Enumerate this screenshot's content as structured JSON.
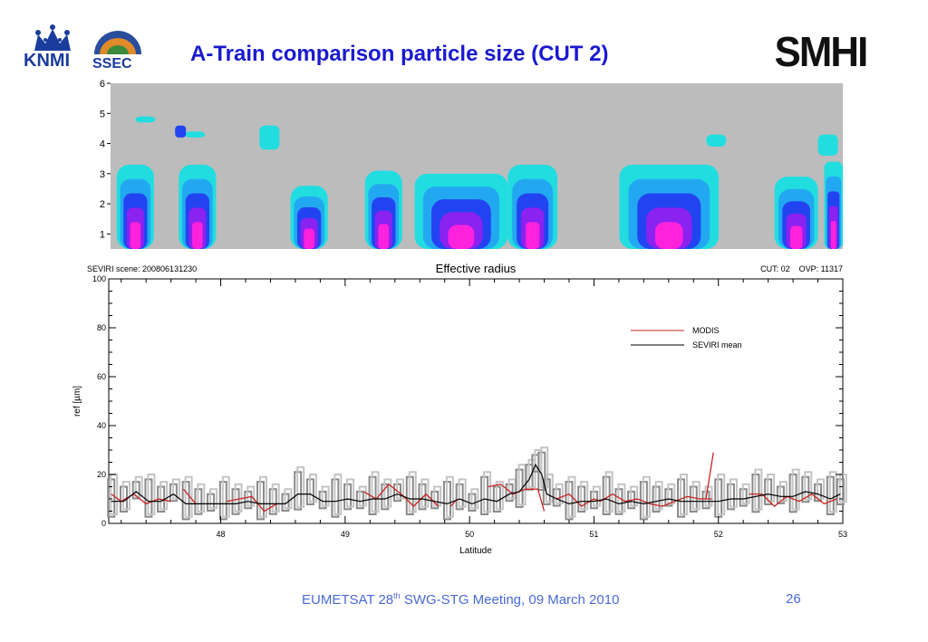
{
  "slide": {
    "title": "A-Train comparison particle size (CUT 2)",
    "footer_prefix": "EUMETSAT 28",
    "footer_sup": "th",
    "footer_suffix": " SWG-STG Meeting, 09 March 2010",
    "page_number": "26"
  },
  "logos": {
    "knmi": "KNMI",
    "ssec": "SSEC",
    "smhi": "SMHI"
  },
  "chart_data": [
    {
      "type": "heatmap",
      "y_ticks": [
        "1",
        "2",
        "3",
        "4",
        "5",
        "6"
      ],
      "ylim": [
        0.5,
        6
      ],
      "xlim": [
        47.1,
        53
      ],
      "colors": {
        "background": "#bcbcbc",
        "level1": "#22dde0",
        "level2": "#22a8f0",
        "level3": "#2244f0",
        "level4": "#8a22f0",
        "level5": "#ff22dd"
      },
      "columns": [
        {
          "x": [
            47.15,
            47.45
          ],
          "top": 3.3
        },
        {
          "x": [
            47.65,
            47.95
          ],
          "top": 3.3
        },
        {
          "x": [
            48.55,
            48.85
          ],
          "top": 2.6
        },
        {
          "x": [
            49.15,
            49.45
          ],
          "top": 3.1
        },
        {
          "x": [
            49.55,
            50.3
          ],
          "top": 3.0
        },
        {
          "x": [
            50.3,
            50.7
          ],
          "top": 3.3
        },
        {
          "x": [
            51.2,
            52.0
          ],
          "top": 3.3
        },
        {
          "x": [
            52.45,
            52.8
          ],
          "top": 2.9
        },
        {
          "x": [
            52.85,
            53.0
          ],
          "top": 3.4
        }
      ]
    },
    {
      "type": "line",
      "title": "Effective radius",
      "header_left": "SEVIRI scene: 200806131230",
      "header_right": "CUT: 02    OVP: 11317",
      "xlabel": "Latitude",
      "ylabel": "ref [µm]",
      "xlim": [
        47.1,
        53
      ],
      "ylim": [
        0,
        100
      ],
      "x_ticks": [
        48,
        49,
        50,
        51,
        52,
        53
      ],
      "y_ticks": [
        0,
        20,
        40,
        60,
        80,
        100
      ],
      "legend_position": "top-right",
      "series": [
        {
          "name": "MODIS",
          "color": "#cc2222",
          "segments": [
            [
              [
                47.12,
                12
              ],
              [
                47.2,
                9
              ],
              [
                47.3,
                12
              ],
              [
                47.4,
                8
              ],
              [
                47.5,
                10
              ],
              [
                47.6,
                9
              ]
            ],
            [
              [
                47.7,
                14
              ],
              [
                47.8,
                8
              ]
            ],
            [
              [
                48.05,
                9
              ],
              [
                48.15,
                10
              ],
              [
                48.25,
                11
              ],
              [
                48.35,
                5
              ],
              [
                48.45,
                8
              ]
            ],
            [
              [
                49.15,
                13
              ],
              [
                49.25,
                10
              ],
              [
                49.35,
                16
              ],
              [
                49.45,
                12
              ],
              [
                49.55,
                7
              ],
              [
                49.65,
                12
              ],
              [
                49.75,
                7
              ]
            ],
            [
              [
                49.85,
                7
              ],
              [
                49.9,
                10
              ]
            ],
            [
              [
                50.15,
                15
              ],
              [
                50.25,
                16
              ],
              [
                50.35,
                12
              ],
              [
                50.45,
                14
              ],
              [
                50.55,
                14
              ],
              [
                50.6,
                5
              ]
            ],
            [
              [
                50.7,
                10
              ],
              [
                50.8,
                12
              ],
              [
                50.9,
                7
              ],
              [
                51.0,
                10
              ],
              [
                51.05,
                9
              ],
              [
                51.15,
                12
              ],
              [
                51.25,
                9
              ],
              [
                51.35,
                10
              ],
              [
                51.45,
                8
              ],
              [
                51.55,
                7
              ],
              [
                51.65,
                9
              ],
              [
                51.75,
                11
              ],
              [
                51.85,
                10
              ],
              [
                51.95,
                10
              ]
            ],
            [
              [
                51.9,
                10
              ],
              [
                51.96,
                29
              ]
            ],
            [
              [
                52.25,
                12
              ],
              [
                52.35,
                12
              ],
              [
                52.45,
                7
              ],
              [
                52.55,
                11
              ],
              [
                52.65,
                9
              ],
              [
                52.75,
                12
              ],
              [
                52.85,
                8
              ],
              [
                52.95,
                10
              ]
            ]
          ]
        },
        {
          "name": "SEVIRI mean",
          "color": "#000000",
          "points": [
            [
              47.12,
              9
            ],
            [
              47.22,
              9
            ],
            [
              47.32,
              13
            ],
            [
              47.42,
              9
            ],
            [
              47.52,
              9
            ],
            [
              47.62,
              12
            ],
            [
              47.72,
              8
            ],
            [
              47.82,
              8
            ],
            [
              47.92,
              8
            ],
            [
              48.02,
              8
            ],
            [
              48.12,
              8
            ],
            [
              48.22,
              9
            ],
            [
              48.32,
              8
            ],
            [
              48.42,
              8
            ],
            [
              48.52,
              8
            ],
            [
              48.62,
              12
            ],
            [
              48.72,
              12
            ],
            [
              48.82,
              9
            ],
            [
              48.92,
              9
            ],
            [
              49.02,
              10
            ],
            [
              49.12,
              9
            ],
            [
              49.22,
              10
            ],
            [
              49.32,
              10
            ],
            [
              49.42,
              12
            ],
            [
              49.52,
              10
            ],
            [
              49.62,
              10
            ],
            [
              49.72,
              9
            ],
            [
              49.82,
              8
            ],
            [
              49.92,
              10
            ],
            [
              50.02,
              8
            ],
            [
              50.12,
              10
            ],
            [
              50.22,
              9
            ],
            [
              50.32,
              12
            ],
            [
              50.4,
              13
            ],
            [
              50.48,
              18
            ],
            [
              50.53,
              24
            ],
            [
              50.58,
              20
            ],
            [
              50.62,
              12
            ],
            [
              50.7,
              10
            ],
            [
              50.8,
              8
            ],
            [
              50.9,
              9
            ],
            [
              51.0,
              9
            ],
            [
              51.1,
              10
            ],
            [
              51.2,
              8
            ],
            [
              51.3,
              9
            ],
            [
              51.4,
              8
            ],
            [
              51.5,
              9
            ],
            [
              51.6,
              10
            ],
            [
              51.7,
              9
            ],
            [
              51.8,
              9
            ],
            [
              51.9,
              9
            ],
            [
              52.0,
              9
            ],
            [
              52.1,
              10
            ],
            [
              52.2,
              10
            ],
            [
              52.3,
              11
            ],
            [
              52.4,
              12
            ],
            [
              52.5,
              11
            ],
            [
              52.6,
              11
            ],
            [
              52.7,
              13
            ],
            [
              52.8,
              12
            ],
            [
              52.9,
              10
            ],
            [
              52.98,
              12
            ]
          ]
        }
      ]
    }
  ]
}
